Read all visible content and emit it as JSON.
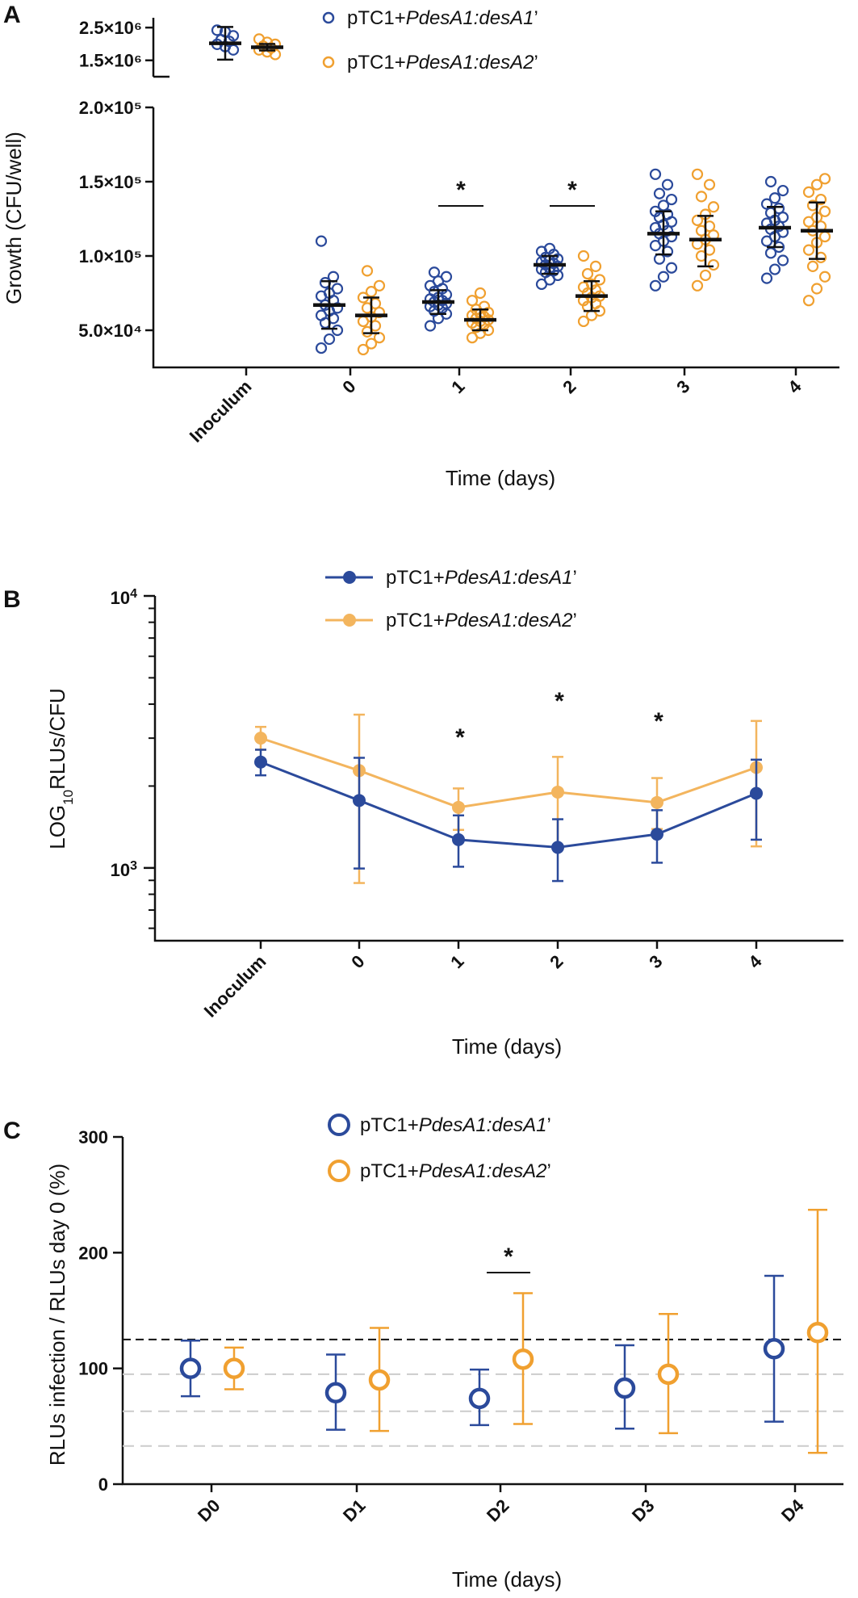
{
  "colors": {
    "series1": "#2b4a9b",
    "series2": "#f0a030",
    "series2_line": "#f3b55e",
    "refline": "#111111",
    "guide": "#cccccc"
  },
  "chart_data": [
    {
      "panel": "A",
      "type": "scatter",
      "ylabel": "Growth (CFU/well)",
      "xlabel": "Time (days)",
      "categories": [
        "Inoculum",
        "0",
        "1",
        "2",
        "3",
        "4"
      ],
      "y_ticks_upper": [
        "2.5×10⁶",
        "1.5×10⁶"
      ],
      "y_ticks_lower": [
        "2.0×10⁵",
        "1.5×10⁵",
        "1.0×10⁵",
        "5.0×10⁴"
      ],
      "ylim_lower": [
        25000,
        200000
      ],
      "ylim_upper": [
        1000000,
        2800000
      ],
      "series": [
        {
          "name": "pTC1+PdesA1:desA1’",
          "name_prefix": "pTC1+",
          "name_italic": "PdesA1:desA1",
          "name_suffix": "’",
          "mean": [
            2020000,
            67000,
            69000,
            94000,
            115000,
            119000
          ],
          "sd_low": [
            1520000,
            51000,
            61000,
            88000,
            101000,
            106000
          ],
          "sd_high": [
            2520000,
            83000,
            77000,
            100000,
            130000,
            133000
          ],
          "points": [
            [
              2420000,
              2370000,
              2250000,
              2130000,
              2080000,
              1990000,
              1920000,
              1820000
            ],
            [
              38000,
              44000,
              50000,
              55000,
              58000,
              60000,
              63000,
              65000,
              67000,
              70000,
              73000,
              75000,
              78000,
              82000,
              86000,
              110000
            ],
            [
              53000,
              58000,
              61000,
              63000,
              65000,
              66000,
              67000,
              68000,
              69000,
              70000,
              71000,
              72000,
              74000,
              76000,
              78000,
              80000,
              83000,
              86000,
              89000
            ],
            [
              81000,
              84000,
              87000,
              89000,
              90000,
              91000,
              92000,
              93000,
              94000,
              95000,
              96000,
              97000,
              98000,
              99000,
              101000,
              103000,
              105000
            ],
            [
              80000,
              86000,
              92000,
              98000,
              103000,
              107000,
              110000,
              113000,
              115000,
              117000,
              119000,
              121000,
              123000,
              126000,
              128000,
              130000,
              134000,
              138000,
              142000,
              148000,
              155000
            ],
            [
              85000,
              91000,
              97000,
              102000,
              106000,
              110000,
              113000,
              116000,
              118000,
              120000,
              122000,
              124000,
              126000,
              129000,
              132000,
              135000,
              139000,
              144000,
              150000
            ]
          ]
        },
        {
          "name": "pTC1+PdesA1:desA2’",
          "name_prefix": "pTC1+",
          "name_italic": "PdesA1:desA2",
          "name_suffix": "’",
          "mean": [
            1900000,
            60000,
            57000,
            73000,
            111000,
            117000
          ],
          "sd_low": [
            1800000,
            48000,
            50000,
            63000,
            93000,
            98000
          ],
          "sd_high": [
            2000000,
            72000,
            64000,
            83000,
            127000,
            136000
          ],
          "points": [
            [
              2150000,
              2050000,
              1990000,
              1930000,
              1880000,
              1820000,
              1760000,
              1680000
            ],
            [
              37000,
              41000,
              45000,
              49000,
              53000,
              56000,
              59000,
              62000,
              65000,
              68000,
              72000,
              76000,
              80000,
              90000
            ],
            [
              45000,
              48000,
              50000,
              52000,
              54000,
              55000,
              56000,
              57000,
              58000,
              59000,
              60000,
              61000,
              62000,
              64000,
              66000,
              70000,
              75000
            ],
            [
              56000,
              60000,
              63000,
              66000,
              68000,
              70000,
              72000,
              73000,
              75000,
              77000,
              79000,
              81000,
              84000,
              88000,
              93000,
              100000
            ],
            [
              80000,
              87000,
              94000,
              100000,
              104000,
              108000,
              111000,
              114000,
              117000,
              120000,
              124000,
              128000,
              133000,
              140000,
              148000,
              155000
            ],
            [
              70000,
              78000,
              86000,
              93000,
              99000,
              104000,
              109000,
              113000,
              117000,
              120000,
              123000,
              126000,
              130000,
              134000,
              138000,
              143000,
              148000,
              152000
            ]
          ]
        }
      ],
      "significance": [
        {
          "category": "1",
          "label": "*"
        },
        {
          "category": "2",
          "label": "*"
        }
      ]
    },
    {
      "panel": "B",
      "type": "line",
      "ylabel_prefix": "LOG",
      "ylabel_sub": "10",
      "ylabel_suffix": "RLUs/CFU",
      "xlabel": "Time (days)",
      "scale": "log",
      "categories": [
        "Inoculum",
        "0",
        "1",
        "2",
        "3",
        "4"
      ],
      "ylim": [
        540,
        10000
      ],
      "y_ticks": [
        {
          "base": "10",
          "exp": "4",
          "value": 10000
        },
        {
          "base": "10",
          "exp": "3",
          "value": 1000
        }
      ],
      "series": [
        {
          "name_prefix": "pTC1+",
          "name_italic": "PdesA1:desA1",
          "name_suffix": "’",
          "values": [
            2450,
            1770,
            1270,
            1190,
            1330,
            1880
          ],
          "err_low": [
            2190,
            995,
            1010,
            895,
            1045,
            1270
          ],
          "err_high": [
            2720,
            2540,
            1560,
            1510,
            1630,
            2500
          ]
        },
        {
          "name_prefix": "pTC1+",
          "name_italic": "PdesA1:desA2",
          "name_suffix": "’",
          "values": [
            3000,
            2280,
            1670,
            1900,
            1740,
            2340
          ],
          "err_low": [
            2720,
            880,
            1380,
            1190,
            1390,
            1200
          ],
          "err_high": [
            3300,
            3660,
            1960,
            2560,
            2140,
            3470
          ]
        }
      ],
      "significance": [
        {
          "category": "1",
          "label": "*"
        },
        {
          "category": "2",
          "label": "*"
        },
        {
          "category": "3",
          "label": "*"
        }
      ]
    },
    {
      "panel": "C",
      "type": "scatter",
      "ylabel": "RLUs infection / RLUs day 0 (%)",
      "xlabel": "Time (days)",
      "categories": [
        "D0",
        "D1",
        "D2",
        "D3",
        "D4"
      ],
      "ylim": [
        0,
        300
      ],
      "y_ticks": [
        300,
        200,
        100,
        0
      ],
      "reference_line": 125,
      "guide_lines": [
        95,
        63,
        33
      ],
      "series": [
        {
          "name_prefix": "pTC1+",
          "name_italic": "PdesA1:desA1",
          "name_suffix": "’",
          "values": [
            100,
            79,
            74,
            83,
            117
          ],
          "err_low": [
            76,
            47,
            51,
            48,
            54
          ],
          "err_high": [
            124,
            112,
            99,
            120,
            180
          ]
        },
        {
          "name_prefix": "pTC1+",
          "name_italic": "PdesA1:desA2",
          "name_suffix": "’",
          "values": [
            100,
            90,
            108,
            95,
            131
          ],
          "err_low": [
            82,
            46,
            52,
            44,
            27
          ],
          "err_high": [
            118,
            135,
            165,
            147,
            237
          ]
        }
      ],
      "significance": [
        {
          "category": "D2",
          "label": "*"
        }
      ]
    }
  ]
}
